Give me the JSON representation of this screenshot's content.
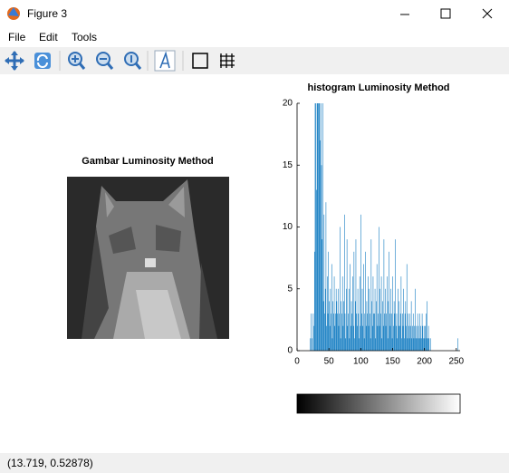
{
  "window": {
    "title": "Figure 3"
  },
  "menu": [
    "File",
    "Edit",
    "Tools"
  ],
  "image": {
    "title": "Gambar Luminosity Method"
  },
  "histogram": {
    "type": "bar",
    "title": "histogram Luminosity Method",
    "color": "#0072bd",
    "xlim": [
      0,
      256
    ],
    "ylim": [
      0,
      20
    ],
    "xticks": [
      0,
      50,
      100,
      150,
      200,
      250
    ],
    "yticks": [
      0,
      5,
      10,
      15,
      20
    ],
    "bins": [
      0,
      1,
      2,
      3,
      4,
      5,
      6,
      7,
      8,
      9,
      10,
      11,
      12,
      13,
      14,
      15,
      16,
      17,
      18,
      19,
      20,
      21,
      22,
      23,
      24,
      25,
      26,
      27,
      28,
      29,
      30,
      31,
      32,
      33,
      34,
      35,
      36,
      37,
      38,
      39,
      40,
      41,
      42,
      43,
      44,
      45,
      46,
      47,
      48,
      49,
      50,
      51,
      52,
      53,
      54,
      55,
      56,
      57,
      58,
      59,
      60,
      61,
      62,
      63,
      64,
      65,
      66,
      67,
      68,
      69,
      70,
      71,
      72,
      73,
      74,
      75,
      76,
      77,
      78,
      79,
      80,
      81,
      82,
      83,
      84,
      85,
      86,
      87,
      88,
      89,
      90,
      91,
      92,
      93,
      94,
      95,
      96,
      97,
      98,
      99,
      100,
      101,
      102,
      103,
      104,
      105,
      106,
      107,
      108,
      109,
      110,
      111,
      112,
      113,
      114,
      115,
      116,
      117,
      118,
      119,
      120,
      121,
      122,
      123,
      124,
      125,
      126,
      127,
      128,
      129,
      130,
      131,
      132,
      133,
      134,
      135,
      136,
      137,
      138,
      139,
      140,
      141,
      142,
      143,
      144,
      145,
      146,
      147,
      148,
      149,
      150,
      151,
      152,
      153,
      154,
      155,
      156,
      157,
      158,
      159,
      160,
      161,
      162,
      163,
      164,
      165,
      166,
      167,
      168,
      169,
      170,
      171,
      172,
      173,
      174,
      175,
      176,
      177,
      178,
      179,
      180,
      181,
      182,
      183,
      184,
      185,
      186,
      187,
      188,
      189,
      190,
      191,
      192,
      193,
      194,
      195,
      196,
      197,
      198,
      199,
      200,
      201,
      202,
      203,
      204,
      205,
      206,
      207,
      208,
      209,
      210,
      211,
      212,
      213,
      214,
      215,
      216,
      217,
      218,
      219,
      220,
      221,
      222,
      223,
      224,
      225,
      226,
      227,
      228,
      229,
      230,
      231,
      232,
      233,
      234,
      235,
      236,
      237,
      238,
      239,
      240,
      241,
      242,
      243,
      244,
      245,
      246,
      247,
      248,
      249,
      250,
      251,
      252,
      253,
      254,
      255,
      256
    ],
    "values": [
      0,
      0,
      0,
      0,
      0,
      0,
      0,
      0,
      0,
      0,
      0,
      0,
      0,
      0,
      0,
      0,
      0,
      0,
      0,
      0,
      1,
      0,
      3,
      1,
      0,
      3,
      2,
      8,
      20,
      20,
      13,
      20,
      24,
      20,
      22,
      20,
      17,
      20,
      15,
      9,
      20,
      4,
      11,
      3,
      5,
      12,
      2,
      6,
      3,
      8,
      4,
      2,
      5,
      3,
      7,
      1,
      4,
      3,
      6,
      2,
      3,
      5,
      4,
      3,
      5,
      2,
      3,
      10,
      1,
      4,
      3,
      6,
      2,
      4,
      11,
      3,
      1,
      5,
      9,
      2,
      3,
      5,
      1,
      7,
      2,
      4,
      3,
      6,
      2,
      8,
      1,
      4,
      9,
      3,
      2,
      5,
      3,
      1,
      6,
      2,
      11,
      3,
      5,
      2,
      7,
      1,
      3,
      8,
      2,
      4,
      3,
      6,
      2,
      5,
      3,
      1,
      9,
      4,
      2,
      6,
      3,
      3,
      5,
      1,
      4,
      7,
      2,
      3,
      10,
      2,
      5,
      3,
      6,
      1,
      4,
      2,
      9,
      3,
      5,
      2,
      3,
      6,
      1,
      4,
      8,
      3,
      2,
      5,
      3,
      1,
      6,
      2,
      4,
      3,
      9,
      2,
      3,
      1,
      5,
      2,
      4,
      2,
      3,
      6,
      1,
      3,
      2,
      5,
      1,
      3,
      4,
      2,
      7,
      1,
      3,
      2,
      1,
      3,
      2,
      4,
      1,
      2,
      3,
      1,
      2,
      5,
      1,
      2,
      1,
      3,
      2,
      1,
      3,
      1,
      2,
      1,
      3,
      2,
      1,
      2,
      1,
      2,
      3,
      1,
      4,
      1,
      2,
      1,
      0,
      1,
      0,
      0,
      0,
      0,
      0,
      0,
      0,
      0,
      0,
      0,
      0,
      0,
      0,
      0,
      0,
      0,
      0,
      0,
      0,
      0,
      0,
      0,
      0,
      0,
      0,
      0,
      0,
      0,
      0,
      0,
      0,
      0,
      0,
      0,
      0,
      0,
      0,
      0,
      0,
      0,
      0,
      0,
      1,
      0,
      0,
      0
    ]
  },
  "status": "(13.719, 0.52878)"
}
